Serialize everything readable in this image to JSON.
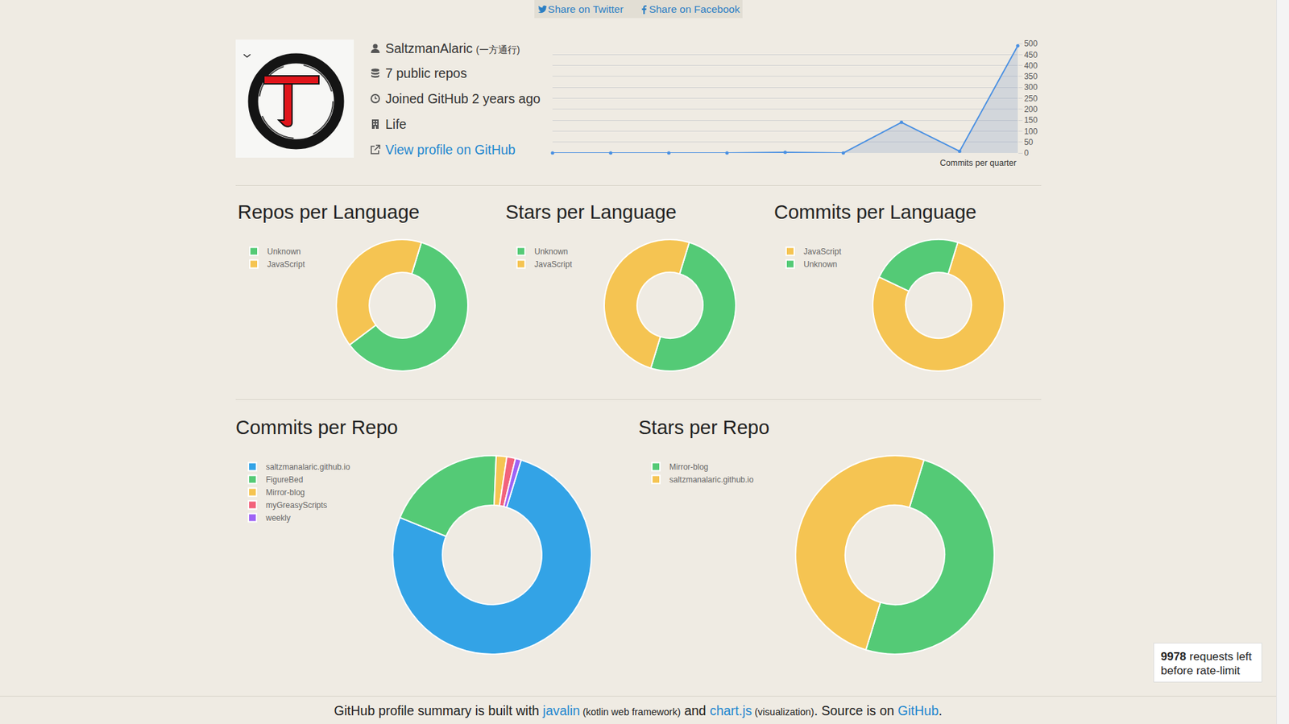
{
  "share_links": [
    "Share on Twitter",
    "Share on Facebook"
  ],
  "profile": {
    "username": "SaltzmanAlaric",
    "display_name": "(一方通行)",
    "public_repos": "7 public repos",
    "joined": "Joined GitHub 2 years ago",
    "company": "Life",
    "link": "View profile on GitHub"
  },
  "chart_data": [
    {
      "type": "line",
      "x_label": "Commits per quarter",
      "categories": [
        null,
        null,
        null,
        null,
        null,
        null,
        null,
        null,
        null
      ],
      "values": [
        0,
        0,
        0,
        0,
        3,
        0,
        140,
        8,
        490
      ],
      "color": "#4a90e2",
      "marker": "circle",
      "ylim": [
        0,
        500
      ],
      "yticks": [
        0,
        50,
        100,
        150,
        200,
        250,
        300,
        350,
        400,
        450,
        500
      ],
      "grid": true,
      "tick_labels": "y"
    },
    {
      "type": "doughnut",
      "title": "Repos per Language",
      "categories": [
        "Unknown",
        "JavaScript"
      ],
      "values": [
        3,
        2
      ],
      "colors": [
        "#54ca76",
        "#f5c452"
      ],
      "legend": "top-left"
    },
    {
      "type": "doughnut",
      "title": "Stars per Language",
      "categories": [
        "Unknown",
        "JavaScript"
      ],
      "values": [
        1,
        1
      ],
      "colors": [
        "#54ca76",
        "#f5c452"
      ],
      "legend": "top-left"
    },
    {
      "type": "doughnut",
      "title": "Commits per Language",
      "categories": [
        "JavaScript",
        "Unknown"
      ],
      "values": [
        495,
        145
      ],
      "colors": [
        "#f5c452",
        "#54ca76"
      ],
      "legend": "top-left"
    },
    {
      "type": "doughnut",
      "title": "Commits per Repo",
      "categories": [
        "saltzmanalaric.github.io",
        "FigureBed",
        "Mirror-blog",
        "myGreasyScripts",
        "weekly"
      ],
      "values": [
        489,
        125,
        11,
        9,
        6
      ],
      "colors": [
        "#33a3e6",
        "#54ca76",
        "#f5c452",
        "#f2637c",
        "#9e63f5"
      ],
      "legend": "top-left"
    },
    {
      "type": "doughnut",
      "title": "Stars per Repo",
      "categories": [
        "Mirror-blog",
        "saltzmanalaric.github.io"
      ],
      "values": [
        1,
        1
      ],
      "colors": [
        "#54ca76",
        "#f5c452"
      ],
      "legend": "top-left"
    }
  ],
  "rate_limit": {
    "count": 9978,
    "lines": [
      "requests left",
      "before rate-limit"
    ]
  },
  "footer": [
    {
      "text": "GitHub profile summary is built with ",
      "style": "plain"
    },
    {
      "text": "javalin",
      "style": "link"
    },
    {
      "text": " (kotlin web framework)",
      "style": "small"
    },
    {
      "text": " and ",
      "style": "plain"
    },
    {
      "text": "chart.js",
      "style": "link"
    },
    {
      "text": " (visualization)",
      "style": "small"
    },
    {
      "text": ". Source is on ",
      "style": "plain"
    },
    {
      "text": "GitHub",
      "style": "link"
    },
    {
      "text": ".",
      "style": "plain"
    }
  ]
}
